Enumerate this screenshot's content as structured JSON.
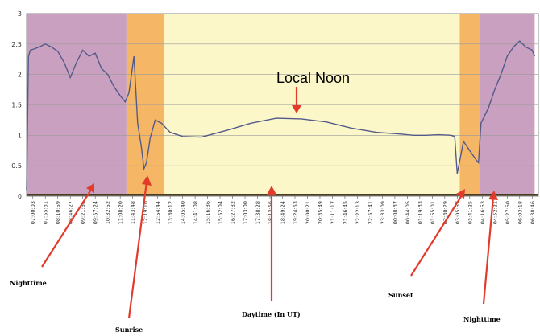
{
  "chart_data": {
    "type": "line",
    "ylim": [
      0,
      3
    ],
    "yticks": [
      0,
      0.5,
      1,
      1.5,
      2,
      2.5,
      3
    ],
    "grid": true,
    "colors": {
      "night": "#c9a0bf",
      "twilight": "#f5b766",
      "day": "#fbf7c9",
      "line": "#545a8a",
      "arrow": "#e23b2a"
    },
    "x_tick_labels": [
      "07:00:03",
      "07:55:31",
      "08:10:59",
      "08:46:27",
      "09:21:56",
      "09:57:24",
      "10:32:52",
      "11:08:20",
      "11:43:48",
      "12:19:16",
      "12:54:44",
      "13:30:12",
      "14:05:40",
      "14:41:08",
      "15:16:36",
      "15:52:04",
      "16:27:32",
      "17:03:00",
      "17:38:28",
      "18:13:56",
      "18:49:24",
      "19:24:53",
      "20:00:21",
      "20:35:49",
      "21:11:17",
      "21:46:45",
      "22:22:13",
      "22:57:41",
      "23:33:09",
      "00:08:37",
      "00:44:05",
      "01:19:33",
      "01:55:01",
      "02:30:29",
      "03:05:57",
      "03:41:25",
      "04:16:53",
      "04:52:21",
      "05:27:50",
      "06:03:18",
      "06:38:46"
    ],
    "bands": [
      {
        "from": 0,
        "to": 8.0,
        "kind": "night"
      },
      {
        "from": 8.0,
        "to": 11.0,
        "kind": "twilight"
      },
      {
        "from": 11.0,
        "to": 34.7,
        "kind": "day"
      },
      {
        "from": 34.7,
        "to": 36.3,
        "kind": "twilight"
      },
      {
        "from": 36.3,
        "to": 40.7,
        "kind": "night"
      }
    ],
    "series": [
      {
        "x": [
          0,
          0.15,
          0.3,
          0.6,
          1,
          1.5,
          2,
          2.5,
          3,
          3.5,
          4,
          4.5,
          5,
          5.5,
          6,
          6.5,
          7,
          7.5,
          7.9,
          8.2,
          8.6,
          8.9,
          9.2,
          9.4,
          9.6,
          9.9,
          10.3,
          10.8,
          11.5,
          12.5,
          14,
          16,
          18,
          20,
          22,
          24,
          26,
          28,
          30,
          31,
          32,
          33,
          34,
          34.3,
          34.5,
          35,
          35.5,
          36,
          36.2,
          36.4,
          37,
          37.5,
          38,
          38.5,
          39,
          39.5,
          40,
          40.5,
          40.7
        ],
        "y": [
          0.1,
          2.3,
          2.4,
          2.42,
          2.45,
          2.5,
          2.45,
          2.38,
          2.2,
          1.95,
          2.2,
          2.4,
          2.3,
          2.35,
          2.1,
          2.0,
          1.8,
          1.65,
          1.55,
          1.7,
          2.3,
          1.2,
          0.8,
          0.45,
          0.55,
          0.95,
          1.25,
          1.2,
          1.05,
          0.98,
          0.97,
          1.08,
          1.2,
          1.28,
          1.27,
          1.22,
          1.12,
          1.05,
          1.02,
          1.0,
          1.0,
          1.01,
          1.0,
          0.98,
          0.37,
          0.9,
          0.75,
          0.6,
          0.55,
          1.2,
          1.45,
          1.75,
          2.0,
          2.3,
          2.45,
          2.55,
          2.45,
          2.4,
          2.3
        ]
      }
    ],
    "annotations": [
      {
        "text": "Local Noon"
      },
      {
        "text": "Nighttime"
      },
      {
        "text": "Sunrise"
      },
      {
        "text": "Daytime (In UT)"
      },
      {
        "text": "Sunset"
      },
      {
        "text": "Nighttime"
      }
    ]
  }
}
